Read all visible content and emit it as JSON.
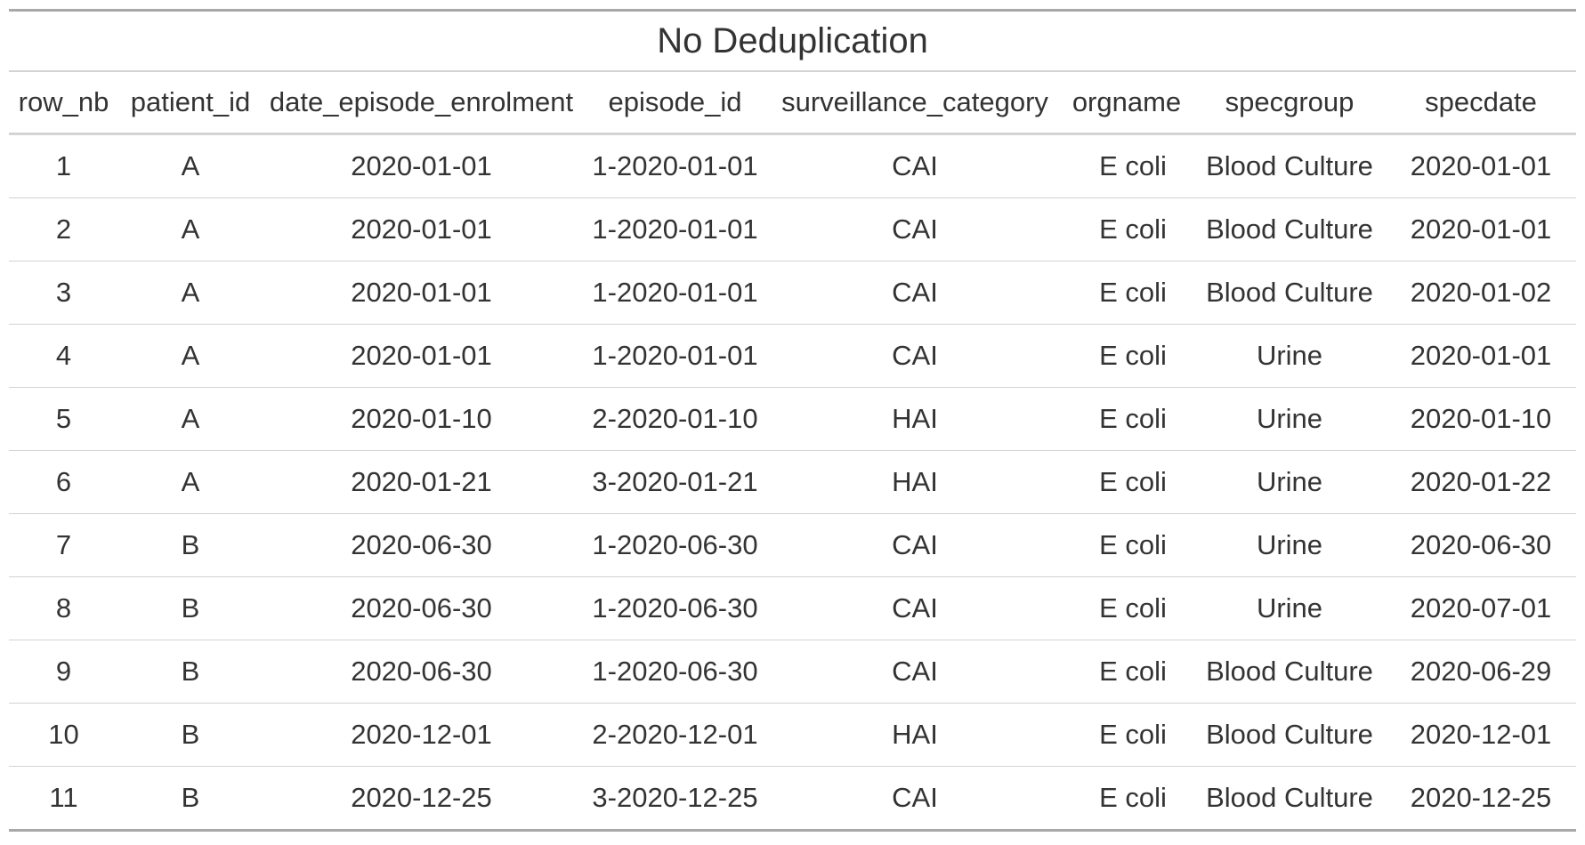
{
  "title": "No Deduplication",
  "columns": [
    "row_nb",
    "patient_id",
    "date_episode_enrolment",
    "episode_id",
    "surveillance_category",
    "orgname",
    "specgroup",
    "specdate"
  ],
  "rows": [
    [
      "1",
      "A",
      "2020-01-01",
      "1-2020-01-01",
      "CAI",
      "E coli",
      "Blood Culture",
      "2020-01-01"
    ],
    [
      "2",
      "A",
      "2020-01-01",
      "1-2020-01-01",
      "CAI",
      "E coli",
      "Blood Culture",
      "2020-01-01"
    ],
    [
      "3",
      "A",
      "2020-01-01",
      "1-2020-01-01",
      "CAI",
      "E coli",
      "Blood Culture",
      "2020-01-02"
    ],
    [
      "4",
      "A",
      "2020-01-01",
      "1-2020-01-01",
      "CAI",
      "E coli",
      "Urine",
      "2020-01-01"
    ],
    [
      "5",
      "A",
      "2020-01-10",
      "2-2020-01-10",
      "HAI",
      "E coli",
      "Urine",
      "2020-01-10"
    ],
    [
      "6",
      "A",
      "2020-01-21",
      "3-2020-01-21",
      "HAI",
      "E coli",
      "Urine",
      "2020-01-22"
    ],
    [
      "7",
      "B",
      "2020-06-30",
      "1-2020-06-30",
      "CAI",
      "E coli",
      "Urine",
      "2020-06-30"
    ],
    [
      "8",
      "B",
      "2020-06-30",
      "1-2020-06-30",
      "CAI",
      "E coli",
      "Urine",
      "2020-07-01"
    ],
    [
      "9",
      "B",
      "2020-06-30",
      "1-2020-06-30",
      "CAI",
      "E coli",
      "Blood Culture",
      "2020-06-29"
    ],
    [
      "10",
      "B",
      "2020-12-01",
      "2-2020-12-01",
      "HAI",
      "E coli",
      "Blood Culture",
      "2020-12-01"
    ],
    [
      "11",
      "B",
      "2020-12-25",
      "3-2020-12-25",
      "CAI",
      "E coli",
      "Blood Culture",
      "2020-12-25"
    ]
  ],
  "colors": {
    "text": "#333333",
    "outer_border": "#a8a8a8",
    "inner_border": "#d3d3d3"
  }
}
